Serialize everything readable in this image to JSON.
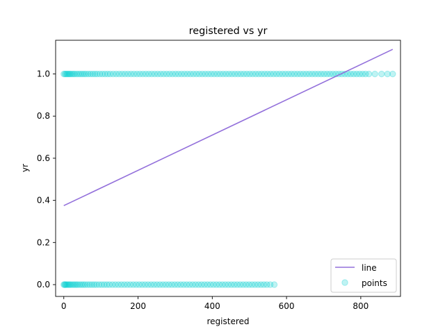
{
  "chart_data": {
    "type": "scatter",
    "title": "registered vs yr",
    "xlabel": "registered",
    "ylabel": "yr",
    "xlim": [
      -22,
      907
    ],
    "ylim": [
      -0.056,
      1.16
    ],
    "xticks": [
      0,
      200,
      400,
      600,
      800
    ],
    "xtick_labels": [
      "0",
      "200",
      "400",
      "600",
      "800"
    ],
    "yticks": [
      0.0,
      0.2,
      0.4,
      0.6,
      0.8,
      1.0
    ],
    "ytick_labels": [
      "0.0",
      "0.2",
      "0.4",
      "0.6",
      "0.8",
      "1.0"
    ],
    "grid": false,
    "legend_position": "lower right",
    "series": [
      {
        "name": "line",
        "kind": "line",
        "color": "#9370db",
        "x": [
          0,
          886
        ],
        "y": [
          0.375,
          1.117
        ]
      },
      {
        "name": "points",
        "kind": "scatter",
        "color": "#00ced1",
        "alpha": 0.25,
        "groups": [
          {
            "y": 1,
            "x": [
              0,
              3,
              6,
              9,
              12,
              15,
              18,
              22,
              26,
              30,
              35,
              40,
              45,
              50,
              55,
              60,
              66,
              72,
              78,
              84,
              90,
              97,
              104,
              111,
              118,
              125,
              133,
              141,
              149,
              157,
              165,
              173,
              181,
              189,
              197,
              205,
              213,
              221,
              229,
              237,
              245,
              253,
              261,
              269,
              277,
              285,
              293,
              301,
              309,
              317,
              325,
              333,
              341,
              349,
              357,
              365,
              373,
              381,
              389,
              397,
              405,
              413,
              421,
              429,
              437,
              445,
              453,
              461,
              469,
              477,
              485,
              493,
              501,
              509,
              517,
              525,
              533,
              541,
              549,
              557,
              565,
              573,
              581,
              589,
              597,
              605,
              613,
              621,
              629,
              637,
              645,
              653,
              661,
              669,
              677,
              685,
              693,
              701,
              709,
              717,
              725,
              733,
              741,
              749,
              757,
              765,
              773,
              781,
              789,
              797,
              805,
              813,
              822,
              838,
              856,
              872,
              886
            ]
          },
          {
            "y": 0,
            "x": [
              0,
              2,
              4,
              6,
              9,
              12,
              15,
              18,
              22,
              26,
              30,
              34,
              38,
              43,
              48,
              53,
              58,
              64,
              70,
              76,
              82,
              88,
              95,
              102,
              109,
              116,
              123,
              131,
              139,
              147,
              155,
              163,
              171,
              179,
              187,
              195,
              203,
              211,
              219,
              227,
              235,
              243,
              251,
              259,
              267,
              275,
              283,
              291,
              299,
              307,
              315,
              323,
              331,
              339,
              347,
              355,
              363,
              371,
              379,
              387,
              395,
              403,
              411,
              419,
              427,
              435,
              443,
              451,
              459,
              467,
              475,
              483,
              491,
              499,
              507,
              515,
              523,
              531,
              539,
              547,
              556,
              567
            ]
          }
        ]
      }
    ]
  }
}
